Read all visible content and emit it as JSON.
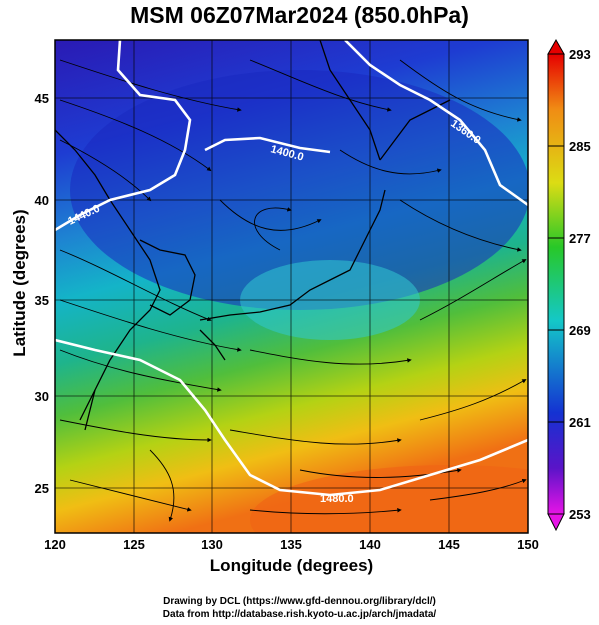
{
  "title": "MSM 06Z07Mar2024 (850.0hPa)",
  "xlabel": "Longitude (degrees)",
  "ylabel": "Latitude  (degrees)",
  "x_ticks": [
    "120",
    "125",
    "130",
    "135",
    "140",
    "145",
    "150"
  ],
  "y_ticks": [
    "25",
    "30",
    "35",
    "40",
    "45"
  ],
  "colorbar_ticks": [
    "293",
    "285",
    "277",
    "269",
    "261",
    "253"
  ],
  "contour_labels": [
    "1400.0",
    "1360.0",
    "1480.0",
    "1440.0"
  ],
  "credits": {
    "line1": "Drawing by DCL (https://www.gfd-dennou.org/library/dcl/)",
    "line2": "Data from http://database.rish.kyoto-u.ac.jp/arch/jmadata/"
  },
  "colors": {
    "cold": "#1c14c8",
    "mid": "#26c8c8",
    "warm": "#f06414",
    "contour": "#ffffff",
    "streamline": "#000000"
  }
}
